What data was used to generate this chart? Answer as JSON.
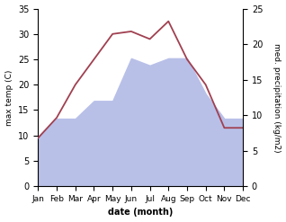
{
  "months": [
    "Jan",
    "Feb",
    "Mar",
    "Apr",
    "May",
    "Jun",
    "Jul",
    "Aug",
    "Sep",
    "Oct",
    "Nov",
    "Dec"
  ],
  "temperature": [
    9.5,
    13.5,
    20.0,
    25.0,
    30.0,
    30.5,
    29.0,
    32.5,
    25.0,
    20.0,
    11.5,
    11.5
  ],
  "precipitation_kg": [
    7.0,
    9.5,
    9.5,
    12.0,
    12.0,
    18.0,
    17.0,
    18.0,
    18.0,
    13.0,
    9.5,
    9.5
  ],
  "temp_color": "#a04050",
  "precip_fill_color": "#b8c0e8",
  "temp_ylim": [
    0,
    35
  ],
  "precip_ylim": [
    0,
    25
  ],
  "temp_yticks": [
    0,
    5,
    10,
    15,
    20,
    25,
    30,
    35
  ],
  "precip_yticks": [
    0,
    5,
    10,
    15,
    20,
    25
  ],
  "xlabel": "date (month)",
  "ylabel_left": "max temp (C)",
  "ylabel_right": "med. precipitation (kg/m2)",
  "bg_color": "#ffffff",
  "fig_width": 3.18,
  "fig_height": 2.47,
  "dpi": 100
}
